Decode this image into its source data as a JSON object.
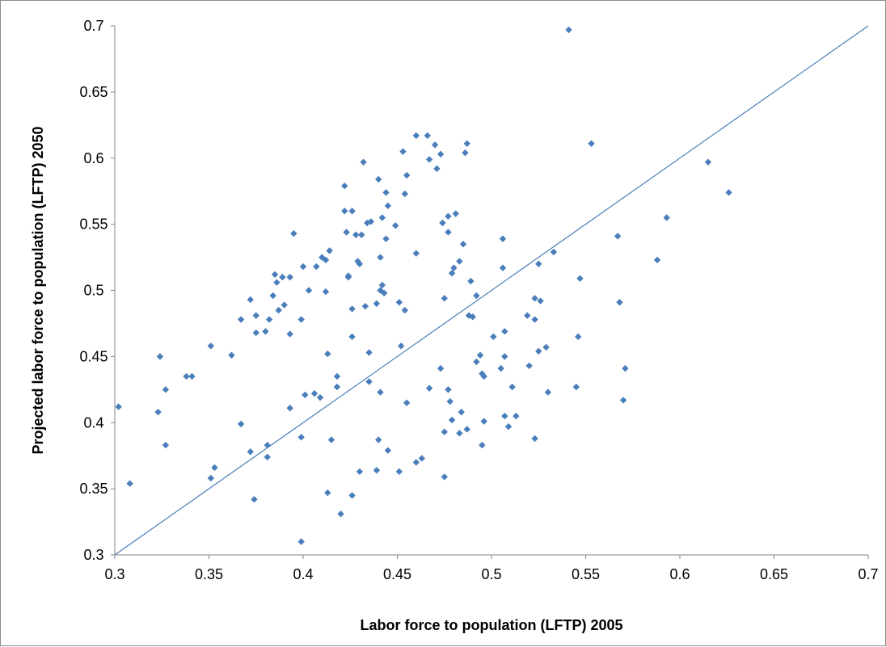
{
  "chart_data": {
    "type": "scatter",
    "title": "",
    "xlabel": "Labor force to population  (LFTP) 2005",
    "ylabel": "Projected labor force to population  (LFTP) 2050",
    "xlim": [
      0.3,
      0.7
    ],
    "ylim": [
      0.3,
      0.7
    ],
    "x_ticks": [
      "0.3",
      "0.35",
      "0.4",
      "0.45",
      "0.5",
      "0.55",
      "0.6",
      "0.65",
      "0.7"
    ],
    "y_ticks": [
      "0.3",
      "0.35",
      "0.4",
      "0.45",
      "0.5",
      "0.55",
      "0.6",
      "0.65",
      "0.7"
    ],
    "grid": false,
    "legend": "none",
    "marker_color": "#4a7ebb",
    "reference_line": {
      "label": "",
      "x": [
        0.3,
        0.7
      ],
      "y": [
        0.3,
        0.7
      ],
      "color": "#4a7ebb"
    },
    "series": [
      {
        "points": [
          [
            0.302,
            0.412
          ],
          [
            0.308,
            0.354
          ],
          [
            0.323,
            0.408
          ],
          [
            0.324,
            0.45
          ],
          [
            0.327,
            0.425
          ],
          [
            0.327,
            0.383
          ],
          [
            0.338,
            0.435
          ],
          [
            0.341,
            0.435
          ],
          [
            0.351,
            0.458
          ],
          [
            0.351,
            0.358
          ],
          [
            0.353,
            0.366
          ],
          [
            0.362,
            0.451
          ],
          [
            0.367,
            0.478
          ],
          [
            0.367,
            0.399
          ],
          [
            0.372,
            0.493
          ],
          [
            0.372,
            0.378
          ],
          [
            0.374,
            0.342
          ],
          [
            0.375,
            0.468
          ],
          [
            0.375,
            0.481
          ],
          [
            0.38,
            0.469
          ],
          [
            0.381,
            0.383
          ],
          [
            0.381,
            0.374
          ],
          [
            0.382,
            0.478
          ],
          [
            0.384,
            0.496
          ],
          [
            0.385,
            0.512
          ],
          [
            0.386,
            0.506
          ],
          [
            0.387,
            0.485
          ],
          [
            0.389,
            0.51
          ],
          [
            0.39,
            0.489
          ],
          [
            0.393,
            0.51
          ],
          [
            0.393,
            0.467
          ],
          [
            0.393,
            0.411
          ],
          [
            0.395,
            0.543
          ],
          [
            0.399,
            0.478
          ],
          [
            0.399,
            0.389
          ],
          [
            0.4,
            0.518
          ],
          [
            0.399,
            0.31
          ],
          [
            0.401,
            0.421
          ],
          [
            0.403,
            0.5
          ],
          [
            0.406,
            0.422
          ],
          [
            0.407,
            0.518
          ],
          [
            0.409,
            0.419
          ],
          [
            0.41,
            0.525
          ],
          [
            0.412,
            0.523
          ],
          [
            0.412,
            0.499
          ],
          [
            0.413,
            0.452
          ],
          [
            0.414,
            0.53
          ],
          [
            0.413,
            0.347
          ],
          [
            0.415,
            0.387
          ],
          [
            0.418,
            0.427
          ],
          [
            0.418,
            0.435
          ],
          [
            0.42,
            0.331
          ],
          [
            0.422,
            0.579
          ],
          [
            0.422,
            0.56
          ],
          [
            0.423,
            0.544
          ],
          [
            0.424,
            0.511
          ],
          [
            0.424,
            0.51
          ],
          [
            0.426,
            0.486
          ],
          [
            0.426,
            0.465
          ],
          [
            0.426,
            0.56
          ],
          [
            0.426,
            0.345
          ],
          [
            0.428,
            0.542
          ],
          [
            0.429,
            0.522
          ],
          [
            0.43,
            0.52
          ],
          [
            0.431,
            0.542
          ],
          [
            0.43,
            0.363
          ],
          [
            0.432,
            0.597
          ],
          [
            0.433,
            0.488
          ],
          [
            0.434,
            0.551
          ],
          [
            0.435,
            0.453
          ],
          [
            0.435,
            0.431
          ],
          [
            0.436,
            0.552
          ],
          [
            0.439,
            0.49
          ],
          [
            0.439,
            0.364
          ],
          [
            0.44,
            0.584
          ],
          [
            0.44,
            0.387
          ],
          [
            0.441,
            0.525
          ],
          [
            0.441,
            0.5
          ],
          [
            0.441,
            0.423
          ],
          [
            0.442,
            0.555
          ],
          [
            0.442,
            0.504
          ],
          [
            0.443,
            0.498
          ],
          [
            0.444,
            0.574
          ],
          [
            0.444,
            0.539
          ],
          [
            0.445,
            0.564
          ],
          [
            0.445,
            0.379
          ],
          [
            0.449,
            0.549
          ],
          [
            0.451,
            0.491
          ],
          [
            0.451,
            0.363
          ],
          [
            0.453,
            0.605
          ],
          [
            0.452,
            0.458
          ],
          [
            0.454,
            0.573
          ],
          [
            0.454,
            0.485
          ],
          [
            0.455,
            0.587
          ],
          [
            0.455,
            0.415
          ],
          [
            0.46,
            0.617
          ],
          [
            0.46,
            0.528
          ],
          [
            0.46,
            0.37
          ],
          [
            0.463,
            0.373
          ],
          [
            0.466,
            0.617
          ],
          [
            0.467,
            0.599
          ],
          [
            0.467,
            0.426
          ],
          [
            0.47,
            0.61
          ],
          [
            0.471,
            0.592
          ],
          [
            0.473,
            0.603
          ],
          [
            0.473,
            0.441
          ],
          [
            0.474,
            0.551
          ],
          [
            0.475,
            0.494
          ],
          [
            0.475,
            0.393
          ],
          [
            0.475,
            0.359
          ],
          [
            0.477,
            0.556
          ],
          [
            0.477,
            0.544
          ],
          [
            0.477,
            0.425
          ],
          [
            0.478,
            0.416
          ],
          [
            0.479,
            0.513
          ],
          [
            0.479,
            0.402
          ],
          [
            0.48,
            0.517
          ],
          [
            0.481,
            0.558
          ],
          [
            0.483,
            0.522
          ],
          [
            0.483,
            0.392
          ],
          [
            0.484,
            0.408
          ],
          [
            0.485,
            0.535
          ],
          [
            0.486,
            0.604
          ],
          [
            0.487,
            0.611
          ],
          [
            0.487,
            0.395
          ],
          [
            0.488,
            0.481
          ],
          [
            0.489,
            0.507
          ],
          [
            0.49,
            0.48
          ],
          [
            0.492,
            0.496
          ],
          [
            0.492,
            0.446
          ],
          [
            0.494,
            0.451
          ],
          [
            0.495,
            0.437
          ],
          [
            0.495,
            0.383
          ],
          [
            0.496,
            0.435
          ],
          [
            0.496,
            0.401
          ],
          [
            0.501,
            0.465
          ],
          [
            0.505,
            0.441
          ],
          [
            0.506,
            0.539
          ],
          [
            0.506,
            0.517
          ],
          [
            0.507,
            0.45
          ],
          [
            0.507,
            0.469
          ],
          [
            0.507,
            0.405
          ],
          [
            0.509,
            0.397
          ],
          [
            0.511,
            0.427
          ],
          [
            0.513,
            0.405
          ],
          [
            0.519,
            0.481
          ],
          [
            0.52,
            0.443
          ],
          [
            0.523,
            0.494
          ],
          [
            0.523,
            0.478
          ],
          [
            0.523,
            0.388
          ],
          [
            0.525,
            0.52
          ],
          [
            0.525,
            0.454
          ],
          [
            0.526,
            0.492
          ],
          [
            0.529,
            0.457
          ],
          [
            0.53,
            0.423
          ],
          [
            0.533,
            0.529
          ],
          [
            0.541,
            0.697
          ],
          [
            0.545,
            0.427
          ],
          [
            0.546,
            0.465
          ],
          [
            0.547,
            0.509
          ],
          [
            0.553,
            0.611
          ],
          [
            0.567,
            0.541
          ],
          [
            0.568,
            0.491
          ],
          [
            0.57,
            0.417
          ],
          [
            0.571,
            0.441
          ],
          [
            0.588,
            0.523
          ],
          [
            0.593,
            0.555
          ],
          [
            0.615,
            0.597
          ],
          [
            0.626,
            0.574
          ]
        ]
      }
    ]
  }
}
